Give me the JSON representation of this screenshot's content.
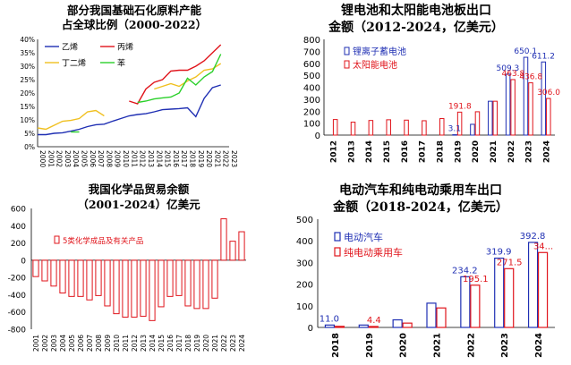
{
  "chart_data": [
    {
      "type": "line",
      "title": "部分我国基础石化原料产能占全球比例（2000-2022）",
      "title_lines": [
        "部分我国基础石化原料产能",
        "占全球比例（2000-2022）"
      ],
      "x": [
        2000,
        2001,
        2002,
        2003,
        2004,
        2005,
        2006,
        2007,
        2008,
        2009,
        2010,
        2011,
        2012,
        2013,
        2014,
        2015,
        2016,
        2017,
        2018,
        2019,
        2020,
        2021,
        2022
      ],
      "x_labels": [
        "2000",
        "2001",
        "2002",
        "2003",
        "2004",
        "2005",
        "2006",
        "2007",
        "2008",
        "2009",
        "2010",
        "2011",
        "2012",
        "2013",
        "2014",
        "2015",
        "2016",
        "2017",
        "2018",
        "2019",
        "2020",
        "2021",
        "2022",
        "2023"
      ],
      "ylim": [
        0,
        40
      ],
      "y_ticks": [
        "0%",
        "5%",
        "10%",
        "15%",
        "20%",
        "25%",
        "30%",
        "35%",
        "40%"
      ],
      "series": [
        {
          "name": "乙烯",
          "color": "#1f2fb3",
          "values": [
            4.5,
            4.5,
            5,
            5.2,
            5.8,
            6.5,
            7.5,
            8.2,
            8.4,
            9.5,
            10.5,
            11.5,
            12,
            12.3,
            13,
            13.8,
            14,
            14.2,
            14.5,
            11.2,
            18,
            22,
            23
          ]
        },
        {
          "name": "丙烯",
          "color": "#e0141b",
          "values": [
            null,
            null,
            null,
            null,
            null,
            null,
            null,
            null,
            null,
            null,
            null,
            17,
            16,
            21.5,
            24,
            25,
            28.2,
            28.5,
            28.5,
            30,
            32,
            35,
            38
          ]
        },
        {
          "name": "丁二烯",
          "color": "#f0c020",
          "values": [
            7,
            6.5,
            8,
            9.5,
            9.8,
            10.5,
            13,
            13.5,
            11.5,
            null,
            null,
            null,
            null,
            null,
            null,
            null,
            null,
            null,
            null,
            null,
            null,
            null,
            null
          ]
        },
        {
          "name": "丁二烯_2",
          "color": "#f0c020",
          "values": [
            null,
            null,
            null,
            null,
            null,
            null,
            null,
            null,
            null,
            null,
            null,
            null,
            null,
            null,
            21.5,
            22.5,
            23.5,
            22.5,
            24.5,
            26,
            28.5,
            29,
            31
          ]
        },
        {
          "name": "苯",
          "color": "#2ad02a",
          "values": [
            null,
            null,
            null,
            null,
            5.5,
            5.5,
            null,
            null,
            null,
            null,
            null,
            null,
            16.5,
            17,
            17.8,
            18.2,
            18.5,
            20,
            25.5,
            23,
            26,
            28,
            34.5
          ]
        }
      ],
      "legend": [
        "乙烯",
        "丙烯",
        "丁二烯",
        "苯"
      ]
    },
    {
      "type": "bar",
      "title": "锂电池和太阳能电池板出口金额（2012-2024，亿美元）",
      "title_lines": [
        "锂电池和太阳能电池板出口",
        "金额（2012-2024，亿美元）"
      ],
      "categories": [
        "2012",
        "2013",
        "2014",
        "2015",
        "2016",
        "2017",
        "2018",
        "2019",
        "2020",
        "2021",
        "2022",
        "2023",
        "2024"
      ],
      "ylim": [
        0,
        800
      ],
      "y_ticks": [
        "0",
        "100",
        "200",
        "300",
        "400",
        "500",
        "600",
        "700",
        "800"
      ],
      "series": [
        {
          "name": "锂离子蓄电池",
          "color": "#1f2fb3",
          "values": [
            null,
            null,
            null,
            null,
            null,
            null,
            null,
            3.1,
            90,
            283,
            509.3,
            650.1,
            611.2
          ]
        },
        {
          "name": "太阳能电池",
          "color": "#e0141b",
          "values": [
            130,
            108,
            122,
            128,
            125,
            120,
            138,
            191.8,
            195,
            283,
            463.8,
            436.8,
            306.0
          ]
        }
      ],
      "data_labels": [
        {
          "series": 0,
          "index": 7,
          "text": "3.1"
        },
        {
          "series": 0,
          "index": 10,
          "text": "509.3"
        },
        {
          "series": 0,
          "index": 11,
          "text": "650.1"
        },
        {
          "series": 0,
          "index": 12,
          "text": "611.2"
        },
        {
          "series": 1,
          "index": 7,
          "text": "191.8"
        },
        {
          "series": 1,
          "index": 10,
          "text": "463.8"
        },
        {
          "series": 1,
          "index": 11,
          "text": "436.8"
        },
        {
          "series": 1,
          "index": 12,
          "text": "306.0"
        }
      ]
    },
    {
      "type": "bar",
      "title": "我国化学品贸易余额（2001-2024）亿美元",
      "title_lines": [
        "我国化学品贸易余额",
        "（2001-2024）亿美元"
      ],
      "categories": [
        "2001",
        "2002",
        "2003",
        "2004",
        "2005",
        "2006",
        "2007",
        "2008",
        "2009",
        "2010",
        "2011",
        "2012",
        "2013",
        "2014",
        "2015",
        "2016",
        "2017",
        "2018",
        "2019",
        "2020",
        "2021",
        "2022",
        "2023",
        "2024"
      ],
      "ylim": [
        -800,
        600
      ],
      "y_ticks": [
        "-800",
        "-600",
        "-400",
        "-200",
        "0",
        "200",
        "400",
        "600"
      ],
      "series": [
        {
          "name": "5类化学成品及有关产品",
          "color": "#e0141b",
          "values": [
            -190,
            -240,
            -300,
            -380,
            -420,
            -420,
            -460,
            -410,
            -530,
            -620,
            -660,
            -660,
            -650,
            -700,
            -540,
            -420,
            -410,
            -530,
            -560,
            -560,
            -440,
            480,
            220,
            330
          ]
        }
      ]
    },
    {
      "type": "bar",
      "title": "电动汽车和纯电动乘用车出口金额（2018-2024，亿美元）",
      "title_lines": [
        "电动汽车和纯电动乘用车出口",
        "金额（2018-2024，亿美元）"
      ],
      "categories": [
        "2018",
        "2019",
        "2020",
        "2021",
        "2022",
        "2023",
        "2024"
      ],
      "ylim": [
        0,
        500
      ],
      "y_ticks": [
        "0",
        "100",
        "200",
        "300",
        "400",
        "500"
      ],
      "series": [
        {
          "name": "电动汽车",
          "color": "#1f2fb3",
          "values": [
            11.0,
            11,
            35,
            112,
            234.2,
            319.9,
            392.8
          ]
        },
        {
          "name": "纯电动乘用车",
          "color": "#e0141b",
          "values": [
            5,
            4.4,
            20,
            90,
            195.1,
            271.5,
            346
          ]
        }
      ],
      "data_labels": [
        {
          "series": 0,
          "index": 0,
          "text": "11.0"
        },
        {
          "series": 1,
          "index": 1,
          "text": "4.4"
        },
        {
          "series": 0,
          "index": 4,
          "text": "234.2"
        },
        {
          "series": 1,
          "index": 4,
          "text": "195.1"
        },
        {
          "series": 0,
          "index": 5,
          "text": "319.9"
        },
        {
          "series": 1,
          "index": 5,
          "text": "271.5"
        },
        {
          "series": 0,
          "index": 6,
          "text": "392.8"
        },
        {
          "series": 1,
          "index": 6,
          "text": "34..."
        }
      ]
    }
  ]
}
